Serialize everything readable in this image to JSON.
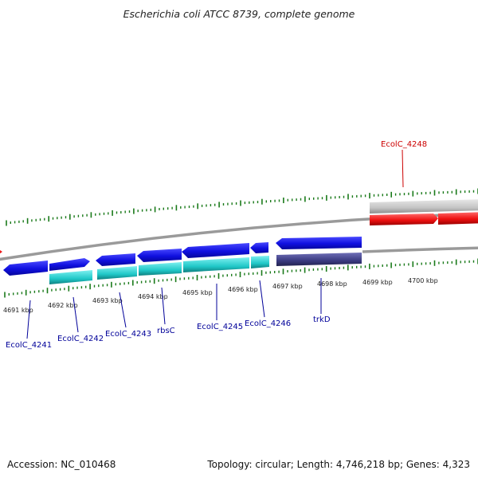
{
  "title": "Escherichia coli ATCC 8739, complete genome",
  "footer": {
    "accession": "Accession: NC_010468",
    "topology": "Topology: circular; Length: 4,746,218 bp; Genes: 4,323"
  },
  "colors": {
    "forward_cds": "#1010e0",
    "reverse_cds": "#20c8c8",
    "trkD_reverse": "#3a3a80",
    "highlight": "#ee1111",
    "highlight_other": "#b8b8b8",
    "label_default": "#000099",
    "label_highlight": "#cc0000",
    "tick": "#1a7a1a"
  },
  "scale_labels": [
    {
      "text": "4691 kbp"
    },
    {
      "text": "4692 kbp"
    },
    {
      "text": "4693 kbp"
    },
    {
      "text": "4694 kbp"
    },
    {
      "text": "4695 kbp"
    },
    {
      "text": "4696 kbp"
    },
    {
      "text": "4697 kbp"
    },
    {
      "text": "4698 kbp"
    },
    {
      "text": "4699 kbp"
    },
    {
      "text": "4700 kbp"
    }
  ],
  "gene_labels": [
    {
      "text": "EcolC_4241"
    },
    {
      "text": "EcolC_4242"
    },
    {
      "text": "EcolC_4243"
    },
    {
      "text": "rbsC"
    },
    {
      "text": "EcolC_4245"
    },
    {
      "text": "EcolC_4246"
    },
    {
      "text": "trkD"
    },
    {
      "text": "EcolC_4248"
    }
  ]
}
